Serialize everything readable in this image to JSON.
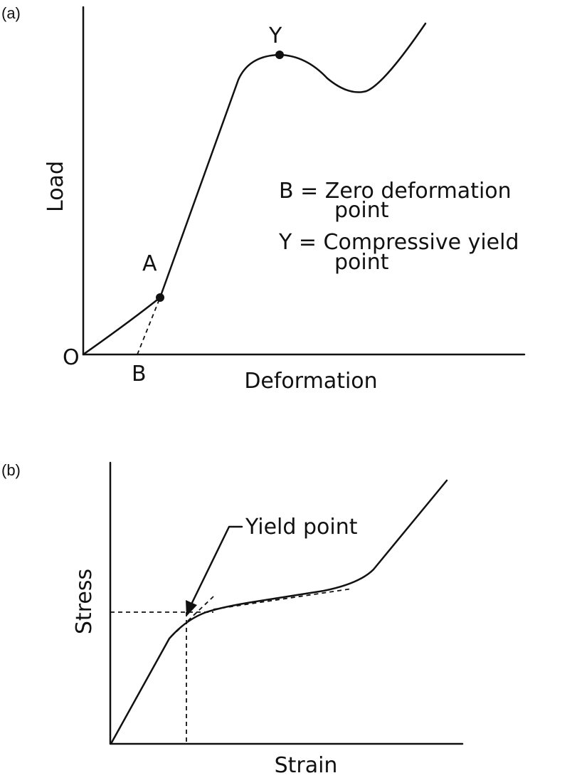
{
  "panels": [
    {
      "label": "(a)",
      "y_axis": "Load",
      "x_axis": "Deformation",
      "points": {
        "origin": "O",
        "a": "A",
        "b": "B",
        "y": "Y"
      },
      "legend": [
        "B = Zero deformation",
        "point",
        "Y = Compressive yield",
        "point"
      ]
    },
    {
      "label": "(b)",
      "y_axis": "Stress",
      "x_axis": "Strain",
      "annotation": "Yield point"
    }
  ]
}
